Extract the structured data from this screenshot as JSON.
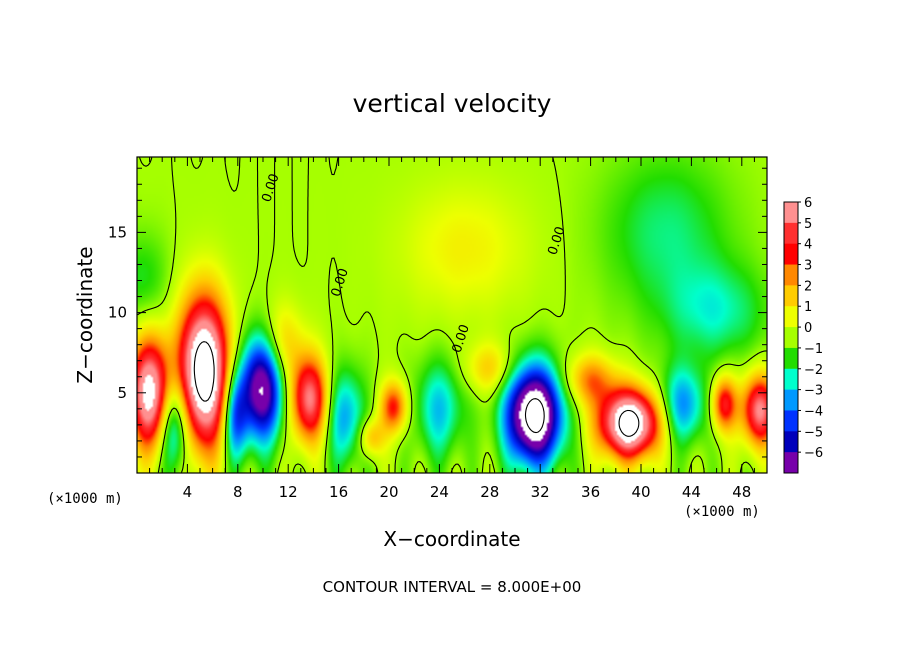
{
  "chart_data": {
    "type": "heatmap",
    "title": "vertical velocity",
    "xlabel": "X−coordinate",
    "ylabel": "Z−coordinate",
    "x_unit_left": "(×1000 m)",
    "x_unit_right": "(×1000 m)",
    "xlim": [
      0,
      50
    ],
    "ylim": [
      0,
      19.7
    ],
    "x_ticks": [
      4,
      8,
      12,
      16,
      20,
      24,
      28,
      32,
      36,
      40,
      44,
      48
    ],
    "x_tick_labels": [
      "4",
      "8",
      "12",
      "16",
      "20",
      "24",
      "28",
      "32",
      "36",
      "40",
      "44",
      "48"
    ],
    "y_ticks": [
      5,
      10,
      15
    ],
    "y_tick_labels": [
      "5",
      "10",
      "15"
    ],
    "colorbar": {
      "levels": [
        6,
        5,
        4,
        3,
        2,
        1,
        0,
        -1,
        -2,
        -3,
        -4,
        -5,
        -6
      ],
      "labels": [
        "6",
        "5",
        "4",
        "3",
        "2",
        "1",
        "0",
        "−1",
        "−2",
        "−3",
        "−4",
        "−5",
        "−6"
      ],
      "colors": [
        "#ff9090",
        "#ff3030",
        "#ff0000",
        "#ff8800",
        "#ffcc00",
        "#eeff00",
        "#a6ff00",
        "#22dd00",
        "#00ffcc",
        "#0099ff",
        "#0033ff",
        "#0000bb",
        "#7700aa"
      ]
    },
    "contour_labels": [
      {
        "text": "0.00",
        "x": 10.9,
        "y": 17.7
      },
      {
        "text": "0.00",
        "x": 16.4,
        "y": 11.8
      },
      {
        "text": "0.00",
        "x": 26.0,
        "y": 8.3
      },
      {
        "text": "0.00",
        "x": 33.6,
        "y": 14.4
      }
    ],
    "features": [
      {
        "x": 1.0,
        "y": 5.0,
        "rx": 1.6,
        "ry": 3.4,
        "w": 7.5
      },
      {
        "x": 5.3,
        "y": 6.3,
        "rx": 2.0,
        "ry": 4.6,
        "w": 9.5
      },
      {
        "x": 9.9,
        "y": 5.3,
        "rx": 1.7,
        "ry": 3.2,
        "w": -7.0
      },
      {
        "x": 13.7,
        "y": 4.6,
        "rx": 1.5,
        "ry": 2.7,
        "w": 6.0
      },
      {
        "x": 20.4,
        "y": 4.1,
        "rx": 1.1,
        "ry": 1.6,
        "w": 4.0
      },
      {
        "x": 18.6,
        "y": 2.2,
        "rx": 1.0,
        "ry": 1.2,
        "w": 2.5
      },
      {
        "x": 31.5,
        "y": 3.6,
        "rx": 2.2,
        "ry": 3.0,
        "w": -9.0
      },
      {
        "x": 39.1,
        "y": 3.1,
        "rx": 2.4,
        "ry": 2.1,
        "w": 9.0
      },
      {
        "x": 43.3,
        "y": 4.2,
        "rx": 1.9,
        "ry": 2.4,
        "w": -3.2
      },
      {
        "x": 46.6,
        "y": 4.3,
        "rx": 1.0,
        "ry": 1.7,
        "w": 4.5
      },
      {
        "x": 49.4,
        "y": 3.9,
        "rx": 1.4,
        "ry": 2.2,
        "w": 6.0
      },
      {
        "x": 36.0,
        "y": 5.8,
        "rx": 2.0,
        "ry": 1.6,
        "w": 3.0
      },
      {
        "x": 26.0,
        "y": 14.0,
        "rx": 5.0,
        "ry": 4.0,
        "w": 1.3
      },
      {
        "x": 3.0,
        "y": 3.0,
        "rx": 1.2,
        "ry": 3.0,
        "w": -4.0
      },
      {
        "x": 7.8,
        "y": 3.5,
        "rx": 1.0,
        "ry": 2.8,
        "w": -4.0
      },
      {
        "x": 16.5,
        "y": 3.5,
        "rx": 1.6,
        "ry": 3.0,
        "w": -3.0
      },
      {
        "x": 24.0,
        "y": 4.0,
        "rx": 2.0,
        "ry": 3.0,
        "w": -2.5
      },
      {
        "x": 11.5,
        "y": 8.0,
        "rx": 1.6,
        "ry": 2.5,
        "w": 2.2
      },
      {
        "x": 42.0,
        "y": 15.0,
        "rx": 5.0,
        "ry": 5.0,
        "w": -1.6
      },
      {
        "x": 46.0,
        "y": 10.0,
        "rx": 4.0,
        "ry": 3.0,
        "w": -1.8
      },
      {
        "x": 28.0,
        "y": 6.5,
        "rx": 2.0,
        "ry": 1.6,
        "w": 2.0
      },
      {
        "x": 0.5,
        "y": 12.0,
        "rx": 2.0,
        "ry": 3.0,
        "w": -1.2
      }
    ],
    "contour_interval_text": "CONTOUR INTERVAL = 8.000E+00"
  }
}
